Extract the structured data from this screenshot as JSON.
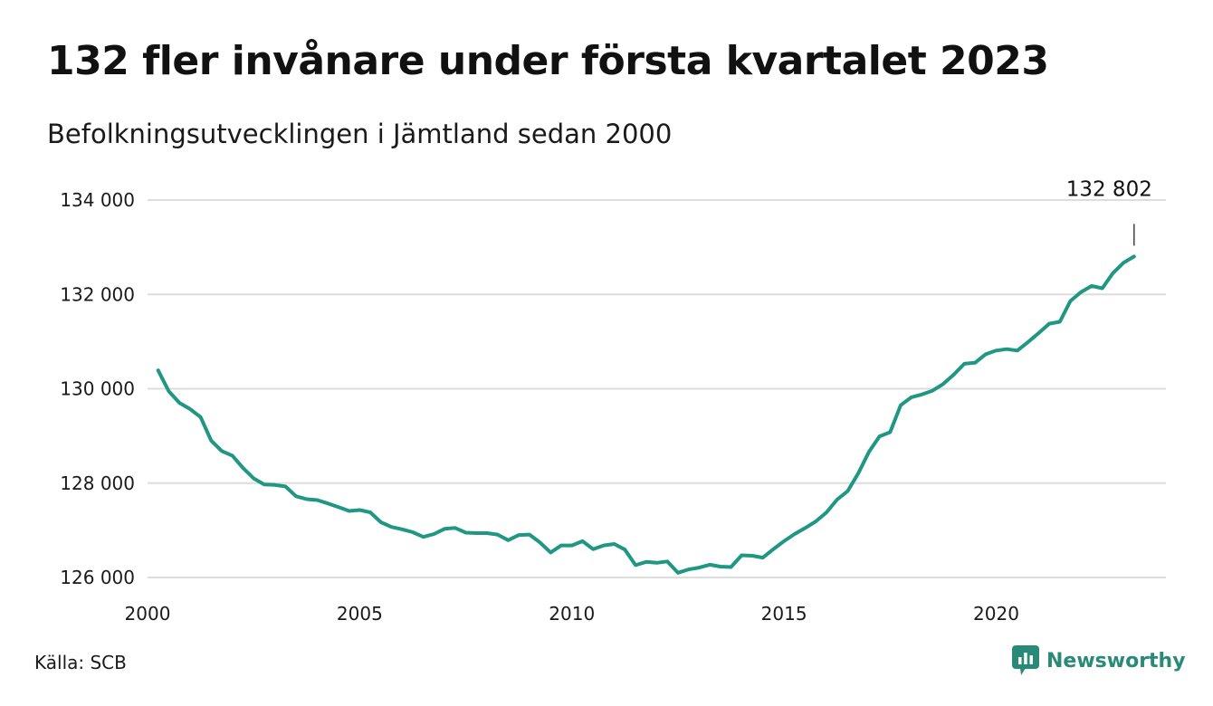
{
  "title": "132 fler invånare under första kvartalet 2023",
  "subtitle": "Befolkningsutvecklingen i Jämtland sedan 2000",
  "source": "Källa: SCB",
  "brand": "Newsworthy",
  "colors": {
    "line": "#1f9782",
    "grid": "#dddddd",
    "brand": "#2a8a78"
  },
  "icons": {
    "brand_logo": "bar-chart-speech-bubble-icon"
  },
  "chart_data": {
    "type": "line",
    "title": "132 fler invånare under första kvartalet 2023",
    "subtitle": "Befolkningsutvecklingen i Jämtland sedan 2000",
    "xlabel": "",
    "ylabel": "",
    "xlim": [
      2000,
      2024
    ],
    "ylim": [
      126000,
      134000
    ],
    "grid": true,
    "legend": "none",
    "y_ticks": [
      126000,
      128000,
      130000,
      132000,
      134000
    ],
    "y_tick_labels": [
      "126 000",
      "128 000",
      "130 000",
      "132 000",
      "134 000"
    ],
    "x_ticks": [
      2000,
      2005,
      2010,
      2015,
      2020
    ],
    "x_tick_labels": [
      "2000",
      "2005",
      "2010",
      "2015",
      "2020"
    ],
    "annotation": {
      "label": "132 802",
      "x": 2023.25,
      "y": 132802
    },
    "series": [
      {
        "x": [
          2000.25,
          2000.5,
          2000.75,
          2001,
          2001.25,
          2001.5,
          2001.75,
          2002,
          2002.25,
          2002.5,
          2002.75,
          2003,
          2003.25,
          2003.5,
          2003.75,
          2004,
          2004.25,
          2004.5,
          2004.75,
          2005,
          2005.25,
          2005.5,
          2005.75,
          2006,
          2006.25,
          2006.5,
          2006.75,
          2007,
          2007.25,
          2007.5,
          2007.75,
          2008,
          2008.25,
          2008.5,
          2008.75,
          2009,
          2009.25,
          2009.5,
          2009.75,
          2010,
          2010.25,
          2010.5,
          2010.75,
          2011,
          2011.25,
          2011.5,
          2011.75,
          2012,
          2012.25,
          2012.5,
          2012.75,
          2013,
          2013.25,
          2013.5,
          2013.75,
          2014,
          2014.25,
          2014.5,
          2014.75,
          2015,
          2015.25,
          2015.5,
          2015.75,
          2016,
          2016.25,
          2016.5,
          2016.75,
          2017,
          2017.25,
          2017.5,
          2017.75,
          2018,
          2018.25,
          2018.5,
          2018.75,
          2019,
          2019.25,
          2019.5,
          2019.75,
          2020,
          2020.25,
          2020.5,
          2020.75,
          2021,
          2021.25,
          2021.5,
          2021.75,
          2022,
          2022.25,
          2022.5,
          2022.75,
          2023,
          2023.25
        ],
        "y": [
          130390,
          129950,
          129700,
          129570,
          129400,
          128900,
          128680,
          128580,
          128320,
          128100,
          127970,
          127960,
          127930,
          127720,
          127660,
          127640,
          127570,
          127490,
          127410,
          127430,
          127380,
          127170,
          127070,
          127020,
          126960,
          126860,
          126920,
          127030,
          127050,
          126950,
          126940,
          126940,
          126910,
          126790,
          126900,
          126910,
          126740,
          126530,
          126680,
          126680,
          126770,
          126600,
          126680,
          126710,
          126590,
          126260,
          126330,
          126310,
          126340,
          126100,
          126170,
          126210,
          126270,
          126230,
          126220,
          126470,
          126460,
          126420,
          126600,
          126770,
          126920,
          127050,
          127190,
          127380,
          127650,
          127830,
          128210,
          128660,
          128990,
          129080,
          129650,
          129820,
          129880,
          129960,
          130100,
          130300,
          130530,
          130550,
          130730,
          130810,
          130840,
          130810,
          130990,
          131180,
          131380,
          131420,
          131860,
          132050,
          132180,
          132130,
          132450,
          132670,
          132802
        ]
      }
    ]
  }
}
